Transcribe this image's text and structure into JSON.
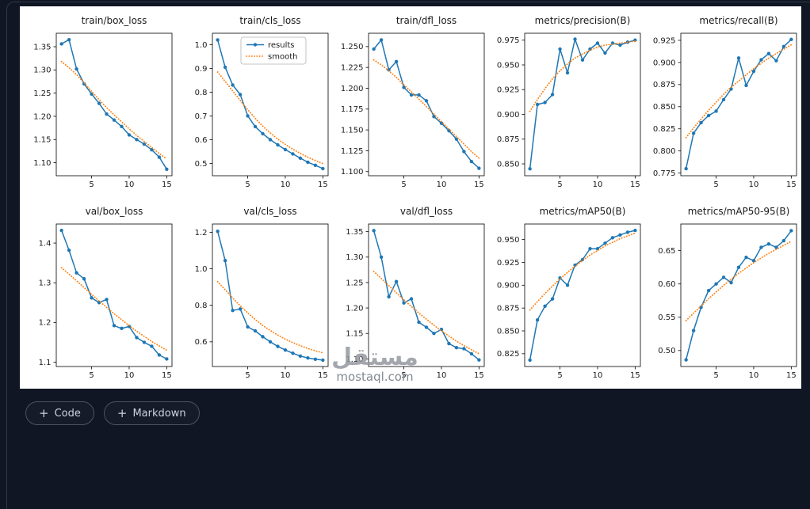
{
  "figure": {
    "colors": {
      "results": "#1f77b4",
      "smooth": "#ff7f0e"
    }
  },
  "cell_actions": {
    "plus_icon": "+",
    "code_label": "Code",
    "markdown_label": "Markdown"
  },
  "watermark": {
    "brand_arabic": "مستقل",
    "url": "mostaql.com"
  },
  "chart_data": {
    "type": "line",
    "x": [
      1,
      2,
      3,
      4,
      5,
      6,
      7,
      8,
      9,
      10,
      11,
      12,
      13,
      14,
      15
    ],
    "xlim": [
      0.3,
      15.7
    ],
    "xtick_values": [
      5,
      10,
      15
    ],
    "xtick_labels": [
      "5",
      "10",
      "15"
    ],
    "legend_entries": [
      "results",
      "smooth"
    ],
    "legend_position": "upper right of train/cls_loss subplot",
    "grid": false,
    "subplots": [
      {
        "title": "train/box_loss",
        "ylim": [
          1.072,
          1.379
        ],
        "ytick_values": [
          1.1,
          1.15,
          1.2,
          1.25,
          1.3,
          1.35
        ],
        "ytick_labels": [
          "1.10",
          "1.15",
          "1.20",
          "1.25",
          "1.30",
          "1.35"
        ],
        "show_legend": false,
        "series": [
          {
            "name": "results",
            "values": [
              1.356,
              1.365,
              1.302,
              1.27,
              1.248,
              1.228,
              1.205,
              1.192,
              1.178,
              1.16,
              1.15,
              1.14,
              1.128,
              1.112,
              1.086
            ]
          },
          {
            "name": "smooth",
            "values": [
              1.318,
              1.305,
              1.29,
              1.272,
              1.254,
              1.236,
              1.219,
              1.203,
              1.188,
              1.173,
              1.159,
              1.146,
              1.133,
              1.12,
              1.108
            ]
          }
        ]
      },
      {
        "title": "train/cls_loss",
        "ylim": [
          0.448,
          1.048
        ],
        "ytick_values": [
          0.5,
          0.6,
          0.7,
          0.8,
          0.9,
          1.0
        ],
        "ytick_labels": [
          "0.5",
          "0.6",
          "0.7",
          "0.8",
          "0.9",
          "1.0"
        ],
        "show_legend": true,
        "series": [
          {
            "name": "results",
            "values": [
              1.02,
              0.905,
              0.83,
              0.79,
              0.7,
              0.655,
              0.625,
              0.6,
              0.578,
              0.558,
              0.54,
              0.522,
              0.505,
              0.492,
              0.478
            ]
          },
          {
            "name": "smooth",
            "values": [
              0.885,
              0.845,
              0.805,
              0.765,
              0.726,
              0.69,
              0.657,
              0.628,
              0.602,
              0.58,
              0.56,
              0.542,
              0.526,
              0.512,
              0.499
            ]
          }
        ]
      },
      {
        "title": "train/dfl_loss",
        "ylim": [
          1.095,
          1.266
        ],
        "ytick_values": [
          1.1,
          1.125,
          1.15,
          1.175,
          1.2,
          1.225,
          1.25
        ],
        "ytick_labels": [
          "1.100",
          "1.125",
          "1.150",
          "1.175",
          "1.200",
          "1.225",
          "1.250"
        ],
        "show_legend": false,
        "series": [
          {
            "name": "results",
            "values": [
              1.247,
              1.258,
              1.222,
              1.232,
              1.201,
              1.192,
              1.192,
              1.185,
              1.166,
              1.158,
              1.149,
              1.139,
              1.124,
              1.112,
              1.104
            ]
          },
          {
            "name": "smooth",
            "values": [
              1.234,
              1.228,
              1.221,
              1.213,
              1.204,
              1.196,
              1.187,
              1.178,
              1.169,
              1.16,
              1.151,
              1.142,
              1.133,
              1.124,
              1.116
            ]
          }
        ]
      },
      {
        "title": "metrics/precision(B)",
        "ylim": [
          0.838,
          0.982
        ],
        "ytick_values": [
          0.85,
          0.875,
          0.9,
          0.925,
          0.95,
          0.975
        ],
        "ytick_labels": [
          "0.850",
          "0.875",
          "0.900",
          "0.925",
          "0.950",
          "0.975"
        ],
        "show_legend": false,
        "series": [
          {
            "name": "results",
            "values": [
              0.845,
              0.91,
              0.912,
              0.92,
              0.966,
              0.942,
              0.976,
              0.955,
              0.966,
              0.972,
              0.962,
              0.972,
              0.97,
              0.973,
              0.975
            ]
          },
          {
            "name": "smooth",
            "values": [
              0.903,
              0.915,
              0.926,
              0.936,
              0.944,
              0.951,
              0.957,
              0.961,
              0.965,
              0.968,
              0.97,
              0.971,
              0.972,
              0.973,
              0.974
            ]
          }
        ]
      },
      {
        "title": "metrics/recall(B)",
        "ylim": [
          0.772,
          0.933
        ],
        "ytick_values": [
          0.775,
          0.8,
          0.825,
          0.85,
          0.875,
          0.9,
          0.925
        ],
        "ytick_labels": [
          "0.775",
          "0.800",
          "0.825",
          "0.850",
          "0.875",
          "0.900",
          "0.925"
        ],
        "show_legend": false,
        "series": [
          {
            "name": "results",
            "values": [
              0.78,
              0.82,
              0.832,
              0.84,
              0.845,
              0.858,
              0.87,
              0.905,
              0.874,
              0.89,
              0.903,
              0.91,
              0.902,
              0.918,
              0.926
            ]
          },
          {
            "name": "smooth",
            "values": [
              0.815,
              0.826,
              0.836,
              0.846,
              0.855,
              0.864,
              0.872,
              0.879,
              0.886,
              0.893,
              0.899,
              0.905,
              0.91,
              0.915,
              0.92
            ]
          }
        ]
      },
      {
        "title": "val/box_loss",
        "ylim": [
          1.089,
          1.448
        ],
        "ytick_values": [
          1.1,
          1.2,
          1.3,
          1.4
        ],
        "ytick_labels": [
          "1.1",
          "1.2",
          "1.3",
          "1.4"
        ],
        "show_legend": false,
        "series": [
          {
            "name": "results",
            "values": [
              1.432,
              1.382,
              1.325,
              1.31,
              1.262,
              1.25,
              1.258,
              1.192,
              1.185,
              1.19,
              1.162,
              1.15,
              1.14,
              1.118,
              1.108
            ]
          },
          {
            "name": "smooth",
            "values": [
              1.338,
              1.322,
              1.305,
              1.288,
              1.271,
              1.254,
              1.238,
              1.222,
              1.207,
              1.192,
              1.178,
              1.165,
              1.152,
              1.141,
              1.13
            ]
          }
        ]
      },
      {
        "title": "val/cls_loss",
        "ylim": [
          0.465,
          1.245
        ],
        "ytick_values": [
          0.6,
          0.8,
          1.0,
          1.2
        ],
        "ytick_labels": [
          "0.6",
          "0.8",
          "1.0",
          "1.2"
        ],
        "show_legend": false,
        "series": [
          {
            "name": "results",
            "values": [
              1.205,
              1.045,
              0.772,
              0.78,
              0.682,
              0.66,
              0.628,
              0.6,
              0.575,
              0.555,
              0.538,
              0.522,
              0.512,
              0.505,
              0.5
            ]
          },
          {
            "name": "smooth",
            "values": [
              0.93,
              0.885,
              0.84,
              0.798,
              0.758,
              0.722,
              0.69,
              0.662,
              0.637,
              0.615,
              0.596,
              0.579,
              0.564,
              0.551,
              0.54
            ]
          }
        ]
      },
      {
        "title": "val/dfl_loss",
        "ylim": [
          1.085,
          1.365
        ],
        "ytick_values": [
          1.1,
          1.15,
          1.2,
          1.25,
          1.3,
          1.35
        ],
        "ytick_labels": [
          "1.10",
          "1.15",
          "1.20",
          "1.25",
          "1.30",
          "1.35"
        ],
        "show_legend": false,
        "series": [
          {
            "name": "results",
            "values": [
              1.352,
              1.3,
              1.222,
              1.252,
              1.21,
              1.218,
              1.172,
              1.162,
              1.15,
              1.158,
              1.13,
              1.122,
              1.12,
              1.11,
              1.098
            ]
          },
          {
            "name": "smooth",
            "values": [
              1.272,
              1.258,
              1.244,
              1.23,
              1.216,
              1.203,
              1.19,
              1.178,
              1.166,
              1.155,
              1.145,
              1.135,
              1.126,
              1.118,
              1.11
            ]
          }
        ]
      },
      {
        "title": "metrics/mAP50(B)",
        "ylim": [
          0.811,
          0.967
        ],
        "ytick_values": [
          0.825,
          0.85,
          0.875,
          0.9,
          0.925,
          0.95
        ],
        "ytick_labels": [
          "0.825",
          "0.850",
          "0.875",
          "0.900",
          "0.925",
          "0.950"
        ],
        "show_legend": false,
        "series": [
          {
            "name": "results",
            "values": [
              0.818,
              0.862,
              0.877,
              0.885,
              0.908,
              0.9,
              0.922,
              0.928,
              0.94,
              0.94,
              0.946,
              0.952,
              0.955,
              0.958,
              0.96
            ]
          },
          {
            "name": "smooth",
            "values": [
              0.873,
              0.882,
              0.891,
              0.899,
              0.907,
              0.914,
              0.921,
              0.927,
              0.933,
              0.938,
              0.943,
              0.947,
              0.951,
              0.954,
              0.957
            ]
          }
        ]
      },
      {
        "title": "metrics/mAP50-95(B)",
        "ylim": [
          0.476,
          0.69
        ],
        "ytick_values": [
          0.5,
          0.55,
          0.6,
          0.65
        ],
        "ytick_labels": [
          "0.50",
          "0.55",
          "0.60",
          "0.65"
        ],
        "show_legend": false,
        "series": [
          {
            "name": "results",
            "values": [
              0.486,
              0.53,
              0.565,
              0.59,
              0.6,
              0.61,
              0.602,
              0.625,
              0.64,
              0.635,
              0.655,
              0.66,
              0.655,
              0.665,
              0.68
            ]
          },
          {
            "name": "smooth",
            "values": [
              0.545,
              0.556,
              0.567,
              0.578,
              0.588,
              0.598,
              0.607,
              0.616,
              0.624,
              0.632,
              0.639,
              0.646,
              0.652,
              0.658,
              0.664
            ]
          }
        ]
      }
    ]
  }
}
